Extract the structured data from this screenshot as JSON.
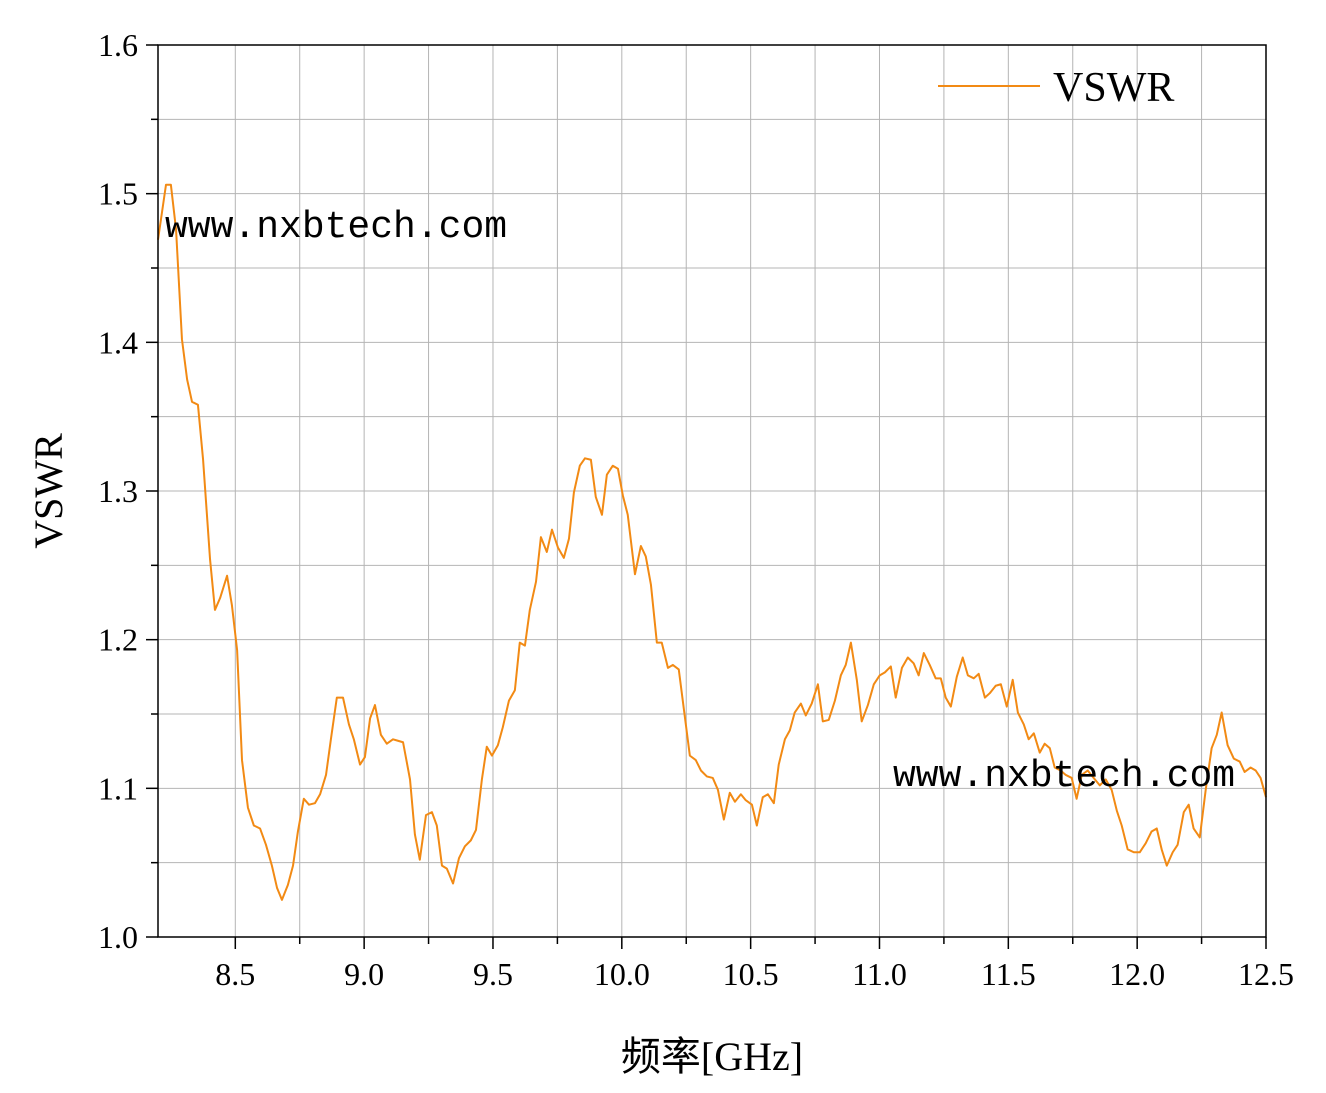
{
  "chart_data": {
    "type": "line",
    "xlabel": "频率[GHz]",
    "ylabel": "VSWR",
    "annotations": [
      "www.nxbtech.com",
      "www.nxbtech.com"
    ],
    "xlim": [
      8.2,
      12.5
    ],
    "xticks": [
      8.5,
      {
        "value": 9,
        "label": "9.0"
      },
      9.5,
      {
        "value": 10,
        "label": "10.0"
      },
      10.5,
      {
        "value": 11,
        "label": "11.0"
      },
      11.5,
      {
        "value": 12,
        "label": "12.0"
      },
      12.5
    ],
    "ylim": [
      1.0,
      1.6
    ],
    "yticks": [
      {
        "value": 1,
        "label": "1.0"
      },
      1.1,
      1.2,
      1.3,
      1.4,
      1.5,
      {
        "value": 1.6,
        "label": "1.6"
      }
    ],
    "grid": true,
    "legend": "upper right",
    "x": [
      8.2,
      8.231,
      8.25,
      8.27,
      8.293,
      8.313,
      8.332,
      8.355,
      8.375,
      8.402,
      8.421,
      8.441,
      8.468,
      8.487,
      8.507,
      8.526,
      8.549,
      8.572,
      8.596,
      8.619,
      8.642,
      8.662,
      8.681,
      8.704,
      8.724,
      8.743,
      8.766,
      8.786,
      8.809,
      8.829,
      8.852,
      8.871,
      8.894,
      8.918,
      8.941,
      8.96,
      8.984,
      9.003,
      9.023,
      9.042,
      9.065,
      9.088,
      9.112,
      9.131,
      9.151,
      9.178,
      9.197,
      9.216,
      9.24,
      9.263,
      9.282,
      9.302,
      9.321,
      9.345,
      9.368,
      9.391,
      9.414,
      9.434,
      9.457,
      9.476,
      9.496,
      9.519,
      9.538,
      9.562,
      9.585,
      9.604,
      9.624,
      9.643,
      9.667,
      9.686,
      9.709,
      9.729,
      9.752,
      9.775,
      9.795,
      9.814,
      9.837,
      9.857,
      9.88,
      9.899,
      9.923,
      9.942,
      9.965,
      9.985,
      10.004,
      10.023,
      10.051,
      10.074,
      10.093,
      10.113,
      10.136,
      10.155,
      10.179,
      10.198,
      10.221,
      10.241,
      10.264,
      10.287,
      10.307,
      10.33,
      10.353,
      10.373,
      10.396,
      10.419,
      10.439,
      10.462,
      10.481,
      10.505,
      10.524,
      10.547,
      10.567,
      10.59,
      10.609,
      10.633,
      10.652,
      10.671,
      10.695,
      10.714,
      10.737,
      10.761,
      10.78,
      10.803,
      10.827,
      10.85,
      10.869,
      10.889,
      10.912,
      10.931,
      10.955,
      10.978,
      11.001,
      11.021,
      11.044,
      11.063,
      11.087,
      11.11,
      11.133,
      11.152,
      11.172,
      11.195,
      11.218,
      11.238,
      11.257,
      11.277,
      11.3,
      11.323,
      11.343,
      11.366,
      11.385,
      11.409,
      11.428,
      11.451,
      11.471,
      11.494,
      11.517,
      11.537,
      11.56,
      11.579,
      11.599,
      11.622,
      11.641,
      11.661,
      11.68,
      11.703,
      11.723,
      11.746,
      11.765,
      11.785,
      11.808,
      11.831,
      11.855,
      11.878,
      11.901,
      11.921,
      11.94,
      11.963,
      11.987,
      12.01,
      12.033,
      12.056,
      12.076,
      12.095,
      12.115,
      12.138,
      12.157,
      12.181,
      12.2,
      12.219,
      12.243,
      12.266,
      12.289,
      12.309,
      12.328,
      12.351,
      12.375,
      12.398,
      12.417,
      12.44,
      12.46,
      12.479,
      12.5
    ],
    "series": [
      {
        "name": "VSWR",
        "color": "#f28a14",
        "values": [
          1.469,
          1.506,
          1.506,
          1.476,
          1.402,
          1.375,
          1.36,
          1.358,
          1.321,
          1.254,
          1.22,
          1.228,
          1.243,
          1.223,
          1.193,
          1.119,
          1.087,
          1.075,
          1.073,
          1.062,
          1.048,
          1.033,
          1.025,
          1.035,
          1.048,
          1.071,
          1.093,
          1.089,
          1.09,
          1.096,
          1.109,
          1.133,
          1.161,
          1.161,
          1.143,
          1.133,
          1.116,
          1.121,
          1.147,
          1.156,
          1.136,
          1.13,
          1.133,
          1.132,
          1.131,
          1.106,
          1.069,
          1.052,
          1.082,
          1.084,
          1.075,
          1.048,
          1.046,
          1.036,
          1.053,
          1.061,
          1.065,
          1.072,
          1.106,
          1.128,
          1.122,
          1.129,
          1.141,
          1.159,
          1.166,
          1.198,
          1.196,
          1.22,
          1.239,
          1.269,
          1.259,
          1.274,
          1.262,
          1.255,
          1.268,
          1.299,
          1.317,
          1.322,
          1.321,
          1.296,
          1.284,
          1.311,
          1.317,
          1.315,
          1.297,
          1.284,
          1.244,
          1.263,
          1.256,
          1.237,
          1.198,
          1.198,
          1.181,
          1.183,
          1.18,
          1.153,
          1.122,
          1.119,
          1.112,
          1.108,
          1.107,
          1.099,
          1.079,
          1.097,
          1.091,
          1.096,
          1.092,
          1.089,
          1.075,
          1.094,
          1.096,
          1.09,
          1.116,
          1.133,
          1.139,
          1.151,
          1.157,
          1.149,
          1.157,
          1.17,
          1.145,
          1.146,
          1.159,
          1.176,
          1.183,
          1.198,
          1.173,
          1.145,
          1.156,
          1.17,
          1.176,
          1.178,
          1.182,
          1.161,
          1.181,
          1.188,
          1.184,
          1.176,
          1.191,
          1.183,
          1.174,
          1.174,
          1.161,
          1.155,
          1.175,
          1.188,
          1.176,
          1.174,
          1.177,
          1.161,
          1.164,
          1.169,
          1.17,
          1.155,
          1.173,
          1.151,
          1.143,
          1.133,
          1.137,
          1.124,
          1.13,
          1.127,
          1.114,
          1.112,
          1.109,
          1.107,
          1.093,
          1.109,
          1.112,
          1.107,
          1.102,
          1.106,
          1.099,
          1.085,
          1.075,
          1.059,
          1.057,
          1.057,
          1.063,
          1.071,
          1.073,
          1.059,
          1.048,
          1.057,
          1.062,
          1.084,
          1.089,
          1.073,
          1.067,
          1.099,
          1.127,
          1.136,
          1.151,
          1.129,
          1.12,
          1.118,
          1.111,
          1.114,
          1.112,
          1.107,
          1.094
        ]
      }
    ]
  }
}
